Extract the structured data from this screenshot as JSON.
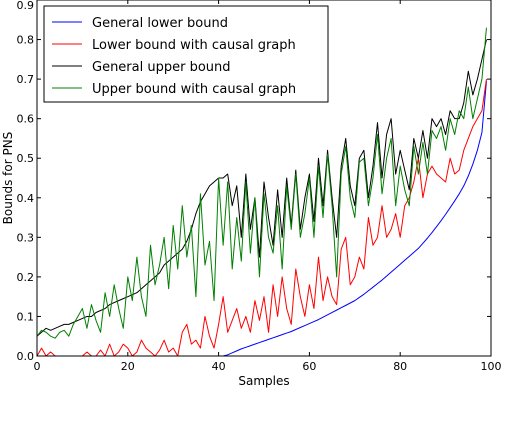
{
  "chart_data": {
    "type": "line",
    "title": "",
    "xlabel": "Samples",
    "ylabel": "Bounds for PNS",
    "xlim": [
      0,
      100
    ],
    "ylim": [
      0,
      0.9
    ],
    "xticks": [
      0,
      20,
      40,
      60,
      80,
      100
    ],
    "yticks": [
      0.0,
      0.1,
      0.2,
      0.3,
      0.4,
      0.5,
      0.6,
      0.7,
      0.8,
      0.9
    ],
    "grid": false,
    "legend_position": "top-left",
    "x": [
      0,
      1,
      2,
      3,
      4,
      5,
      6,
      7,
      8,
      9,
      10,
      11,
      12,
      13,
      14,
      15,
      16,
      17,
      18,
      19,
      20,
      21,
      22,
      23,
      24,
      25,
      26,
      27,
      28,
      29,
      30,
      31,
      32,
      33,
      34,
      35,
      36,
      37,
      38,
      39,
      40,
      41,
      42,
      43,
      44,
      45,
      46,
      47,
      48,
      49,
      50,
      51,
      52,
      53,
      54,
      55,
      56,
      57,
      58,
      59,
      60,
      61,
      62,
      63,
      64,
      65,
      66,
      67,
      68,
      69,
      70,
      71,
      72,
      73,
      74,
      75,
      76,
      77,
      78,
      79,
      80,
      81,
      82,
      83,
      84,
      85,
      86,
      87,
      88,
      89,
      90,
      91,
      92,
      93,
      94,
      95,
      96,
      97,
      98,
      99
    ],
    "series": [
      {
        "name": "General lower bound",
        "color": "#0000ff",
        "values": [
          0,
          0,
          0,
          0,
          0,
          0,
          0,
          0,
          0,
          0,
          0,
          0,
          0,
          0,
          0,
          0,
          0,
          0,
          0,
          0,
          0,
          0,
          0,
          0,
          0,
          0,
          0,
          0,
          0,
          0,
          0,
          0,
          0,
          0,
          0,
          0,
          0,
          0,
          0,
          0,
          0,
          0,
          0.003,
          0.008,
          0.013,
          0.018,
          0.022,
          0.026,
          0.03,
          0.034,
          0.038,
          0.042,
          0.046,
          0.05,
          0.054,
          0.058,
          0.062,
          0.067,
          0.072,
          0.077,
          0.082,
          0.087,
          0.092,
          0.098,
          0.104,
          0.11,
          0.116,
          0.122,
          0.128,
          0.134,
          0.14,
          0.148,
          0.156,
          0.165,
          0.174,
          0.183,
          0.192,
          0.202,
          0.212,
          0.222,
          0.232,
          0.242,
          0.252,
          0.262,
          0.272,
          0.285,
          0.298,
          0.312,
          0.327,
          0.342,
          0.358,
          0.375,
          0.392,
          0.41,
          0.43,
          0.455,
          0.485,
          0.52,
          0.565,
          0.695
        ]
      },
      {
        "name": "Lower bound with causal graph",
        "color": "#ff0000",
        "values": [
          0,
          0.02,
          0,
          0.01,
          0,
          0,
          0,
          0,
          0,
          0,
          0,
          0.01,
          0,
          0,
          0.015,
          0,
          0.03,
          0,
          0.01,
          0.03,
          0.02,
          0,
          0.01,
          0.04,
          0.02,
          0.01,
          0,
          0.015,
          0.04,
          0.01,
          0.02,
          0,
          0.06,
          0.08,
          0.03,
          0.04,
          0.02,
          0.1,
          0.05,
          0.02,
          0.08,
          0.15,
          0.06,
          0.09,
          0.12,
          0.07,
          0.1,
          0.06,
          0.14,
          0.09,
          0.15,
          0.06,
          0.18,
          0.1,
          0.2,
          0.12,
          0.08,
          0.22,
          0.15,
          0.1,
          0.18,
          0.12,
          0.25,
          0.14,
          0.2,
          0.15,
          0.13,
          0.27,
          0.3,
          0.18,
          0.2,
          0.25,
          0.22,
          0.35,
          0.28,
          0.3,
          0.38,
          0.3,
          0.32,
          0.36,
          0.3,
          0.38,
          0.4,
          0.44,
          0.5,
          0.4,
          0.46,
          0.48,
          0.46,
          0.45,
          0.44,
          0.5,
          0.46,
          0.47,
          0.52,
          0.55,
          0.58,
          0.6,
          0.62,
          0.7
        ]
      },
      {
        "name": "General upper bound",
        "color": "#000000",
        "values": [
          0.05,
          0.06,
          0.07,
          0.065,
          0.07,
          0.075,
          0.08,
          0.08,
          0.085,
          0.09,
          0.095,
          0.1,
          0.1,
          0.11,
          0.115,
          0.12,
          0.13,
          0.135,
          0.14,
          0.145,
          0.15,
          0.155,
          0.16,
          0.17,
          0.18,
          0.19,
          0.2,
          0.21,
          0.23,
          0.24,
          0.25,
          0.26,
          0.27,
          0.29,
          0.32,
          0.36,
          0.39,
          0.41,
          0.43,
          0.44,
          0.45,
          0.45,
          0.46,
          0.38,
          0.43,
          0.3,
          0.46,
          0.32,
          0.4,
          0.25,
          0.44,
          0.35,
          0.28,
          0.42,
          0.3,
          0.45,
          0.33,
          0.47,
          0.32,
          0.4,
          0.46,
          0.34,
          0.5,
          0.38,
          0.52,
          0.4,
          0.3,
          0.48,
          0.55,
          0.43,
          0.38,
          0.5,
          0.52,
          0.4,
          0.48,
          0.59,
          0.45,
          0.56,
          0.6,
          0.46,
          0.52,
          0.47,
          0.42,
          0.55,
          0.5,
          0.57,
          0.5,
          0.6,
          0.58,
          0.6,
          0.56,
          0.62,
          0.6,
          0.6,
          0.64,
          0.72,
          0.66,
          0.7,
          0.75,
          0.8
        ]
      },
      {
        "name": "Upper bound with causal graph",
        "color": "#008000",
        "values": [
          0.05,
          0.065,
          0.06,
          0.05,
          0.045,
          0.06,
          0.065,
          0.05,
          0.08,
          0.1,
          0.12,
          0.07,
          0.13,
          0.09,
          0.06,
          0.16,
          0.1,
          0.18,
          0.12,
          0.07,
          0.2,
          0.14,
          0.25,
          0.15,
          0.1,
          0.28,
          0.18,
          0.23,
          0.3,
          0.17,
          0.33,
          0.22,
          0.38,
          0.25,
          0.33,
          0.15,
          0.41,
          0.23,
          0.29,
          0.14,
          0.45,
          0.28,
          0.44,
          0.22,
          0.35,
          0.24,
          0.44,
          0.26,
          0.4,
          0.2,
          0.41,
          0.3,
          0.26,
          0.38,
          0.22,
          0.43,
          0.32,
          0.46,
          0.3,
          0.36,
          0.45,
          0.3,
          0.48,
          0.35,
          0.51,
          0.38,
          0.2,
          0.46,
          0.53,
          0.4,
          0.35,
          0.49,
          0.5,
          0.38,
          0.45,
          0.56,
          0.41,
          0.5,
          0.55,
          0.38,
          0.48,
          0.42,
          0.38,
          0.53,
          0.46,
          0.54,
          0.46,
          0.57,
          0.55,
          0.58,
          0.52,
          0.6,
          0.56,
          0.62,
          0.6,
          0.68,
          0.6,
          0.65,
          0.7,
          0.83
        ]
      }
    ]
  }
}
